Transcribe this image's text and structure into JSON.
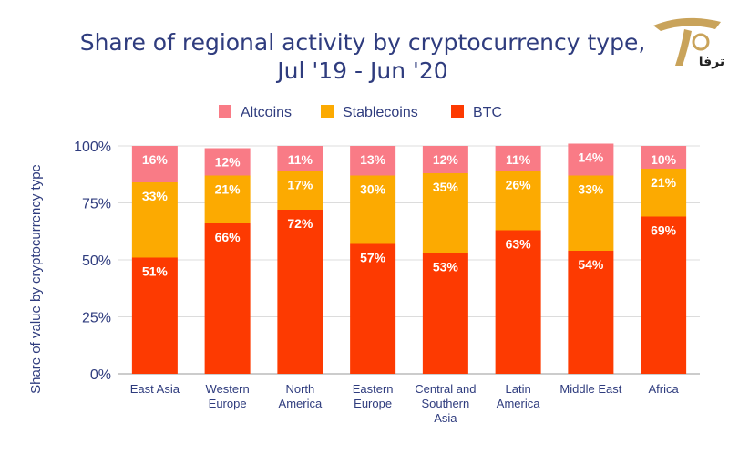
{
  "logo": {
    "text": "ترفا"
  },
  "chart_data": {
    "type": "bar",
    "stacked": true,
    "title": [
      "Share of regional activity by cryptocurrency type,",
      "Jul '19 - Jun '20"
    ],
    "xlabel": "",
    "ylabel": "Share of value by cryptocurrency type",
    "ylim": [
      0,
      100
    ],
    "yticks": [
      "0%",
      "25%",
      "50%",
      "75%",
      "100%"
    ],
    "ytick_values": [
      0,
      25,
      50,
      75,
      100
    ],
    "legend_position": "top-center",
    "categories": [
      [
        "East Asia"
      ],
      [
        "Western",
        "Europe"
      ],
      [
        "North",
        "America"
      ],
      [
        "Eastern",
        "Europe"
      ],
      [
        "Central and",
        "Southern",
        "Asia"
      ],
      [
        "Latin",
        "America"
      ],
      [
        "Middle East"
      ],
      [
        "Africa"
      ]
    ],
    "series": [
      {
        "name": "BTC",
        "color": "#fd3a01",
        "values": [
          51,
          66,
          72,
          57,
          53,
          63,
          54,
          69
        ],
        "labels": [
          "51%",
          "66%",
          "72%",
          "57%",
          "53%",
          "63%",
          "54%",
          "69%"
        ]
      },
      {
        "name": "Stablecoins",
        "color": "#fcaa01",
        "values": [
          33,
          21,
          17,
          30,
          35,
          26,
          33,
          21
        ],
        "labels": [
          "33%",
          "21%",
          "17%",
          "30%",
          "35%",
          "26%",
          "33%",
          "21%"
        ]
      },
      {
        "name": "Altcoins",
        "color": "#f97b86",
        "values": [
          16,
          12,
          11,
          13,
          12,
          11,
          14,
          10
        ],
        "labels": [
          "16%",
          "12%",
          "11%",
          "13%",
          "12%",
          "11%",
          "14%",
          "10%"
        ]
      }
    ],
    "legend_order": [
      "Altcoins",
      "Stablecoins",
      "BTC"
    ],
    "colors": {
      "title": "#2f3c7e",
      "axis_text": "#2f3c7e",
      "grid": "#dcdcdc",
      "label": "#ffffff"
    }
  }
}
